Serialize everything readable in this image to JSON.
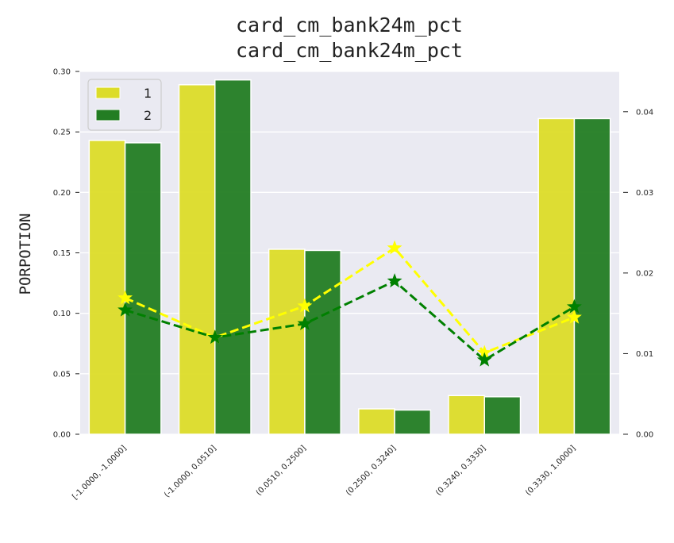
{
  "chart_data": {
    "type": "bar",
    "title": "card_cm_bank24m_pct",
    "subtitle": "card_cm_bank24m_pct",
    "ylabel": "PORPOTION",
    "categories": [
      "[-1.0000, -1.0000]",
      "(-1.0000, 0.0510]",
      "(0.0510, 0.2500]",
      "(0.2500, 0.3240]",
      "(0.3240, 0.3330]",
      "(0.3330, 1.0000]"
    ],
    "ylim": [
      0,
      0.3
    ],
    "yticks": [
      "0.00",
      "0.05",
      "0.10",
      "0.15",
      "0.20",
      "0.25",
      "0.30"
    ],
    "ylim_right": [
      0,
      0.045
    ],
    "yticks_right": [
      "0.00",
      "0.01",
      "0.02",
      "0.03",
      "0.04"
    ],
    "grid": true,
    "legend_position": "top-left",
    "series": [
      {
        "name": "1",
        "kind": "bar",
        "color": "#dcdc28",
        "values": [
          0.243,
          0.289,
          0.153,
          0.021,
          0.032,
          0.261
        ]
      },
      {
        "name": "2",
        "kind": "bar",
        "color": "#237d23",
        "values": [
          0.241,
          0.293,
          0.152,
          0.02,
          0.031,
          0.261
        ]
      },
      {
        "kind": "line",
        "axis": "right",
        "style": "dashed",
        "marker": "star",
        "color": "#ffff00",
        "values": [
          0.0169,
          0.012,
          0.0159,
          0.0231,
          0.0101,
          0.0145
        ]
      },
      {
        "kind": "line",
        "axis": "right",
        "style": "dashed",
        "marker": "star",
        "color": "#008000",
        "values": [
          0.0154,
          0.012,
          0.0137,
          0.019,
          0.0092,
          0.0158
        ]
      }
    ]
  }
}
